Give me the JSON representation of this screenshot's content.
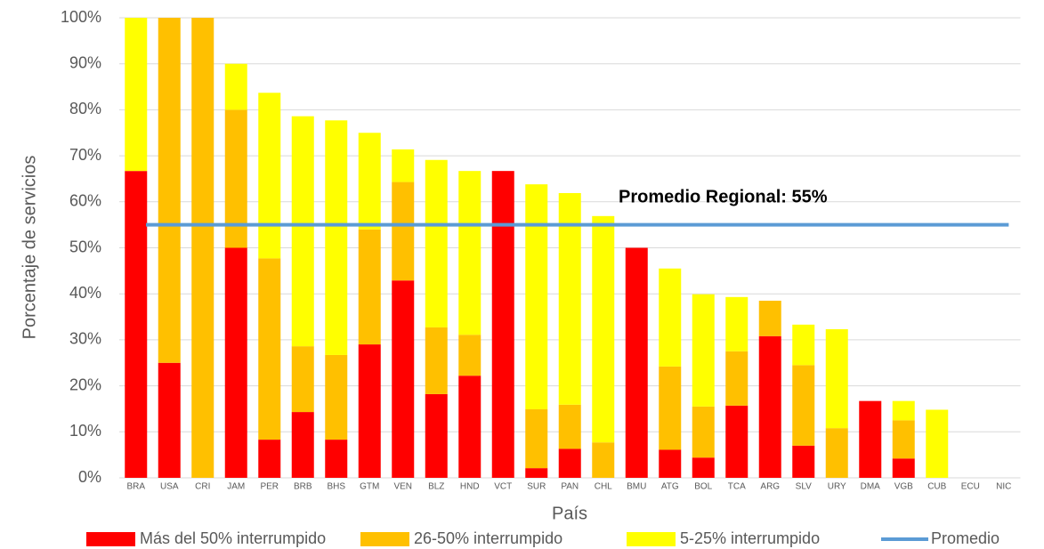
{
  "chart_data": {
    "type": "stacked_bar",
    "xlabel": "País",
    "ylabel": "Porcentaje de servicios",
    "categories": [
      "BRA",
      "USA",
      "CRI",
      "JAM",
      "PER",
      "BRB",
      "BHS",
      "GTM",
      "VEN",
      "BLZ",
      "HND",
      "VCT",
      "SUR",
      "PAN",
      "CHL",
      "BMU",
      "ATG",
      "BOL",
      "TCA",
      "ARG",
      "SLV",
      "URY",
      "DMA",
      "VGB",
      "CUB",
      "ECU",
      "NIC"
    ],
    "series": [
      {
        "name": "Más del 50% interrumpido",
        "color": "#ff0000",
        "values": [
          66.7,
          25,
          0,
          50,
          8.3,
          14.3,
          8.3,
          29,
          42.9,
          18.2,
          22.2,
          66.7,
          2.1,
          6.3,
          0,
          50,
          6.1,
          4.4,
          15.7,
          30.8,
          7,
          0,
          16.7,
          4.2,
          0,
          0,
          0
        ]
      },
      {
        "name": "26-50% interrumpido",
        "color": "#ffc000",
        "values": [
          0,
          75,
          100,
          30,
          39.4,
          14.3,
          18.4,
          25,
          21.4,
          14.5,
          8.9,
          0,
          12.8,
          9.6,
          7.7,
          0,
          18.1,
          11.1,
          11.8,
          7.7,
          17.5,
          10.8,
          0,
          8.3,
          0,
          0,
          0
        ]
      },
      {
        "name": "5-25% interrumpido",
        "color": "#ffff00",
        "values": [
          33.3,
          0,
          0,
          10,
          36,
          50,
          51,
          21,
          7.1,
          36.4,
          35.6,
          0,
          48.9,
          46,
          49.2,
          0,
          21.3,
          24.4,
          11.8,
          0,
          8.8,
          21.5,
          0,
          4.2,
          14.8,
          0,
          0
        ]
      }
    ],
    "average": {
      "name": "Promedio",
      "value": 55,
      "color": "#5b9bd5",
      "label": "Promedio Regional: 55%"
    },
    "ylim": [
      0,
      100
    ],
    "yticks": [
      {
        "value": 0,
        "label": "0%"
      },
      {
        "value": 10,
        "label": "10%"
      },
      {
        "value": 20,
        "label": "20%"
      },
      {
        "value": 30,
        "label": "30%"
      },
      {
        "value": 40,
        "label": "40%"
      },
      {
        "value": 50,
        "label": "50%"
      },
      {
        "value": 60,
        "label": "60%"
      },
      {
        "value": 70,
        "label": "70%"
      },
      {
        "value": 80,
        "label": "80%"
      },
      {
        "value": 90,
        "label": "90%"
      },
      {
        "value": 100,
        "label": "100%"
      }
    ],
    "grid": true,
    "legend": "bottom"
  }
}
